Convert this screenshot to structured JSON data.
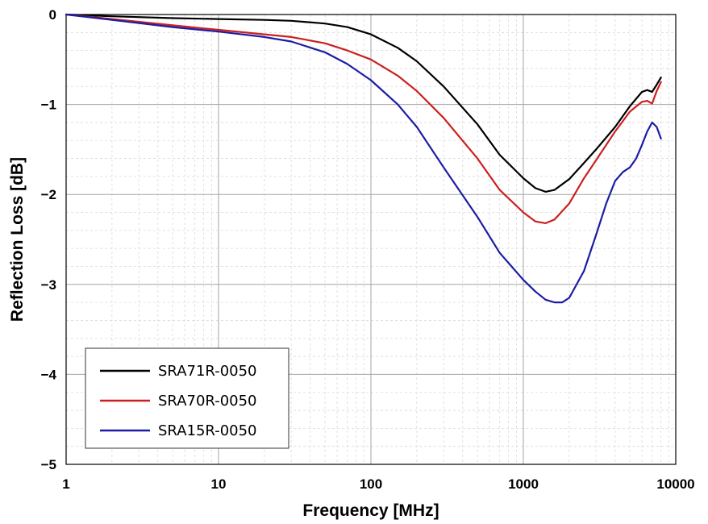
{
  "chart_data": {
    "type": "line",
    "xlabel": "Frequency [MHz]",
    "ylabel": "Reflection Loss [dB]",
    "xscale": "log",
    "xlim": [
      1,
      10000
    ],
    "ylim": [
      -5,
      0
    ],
    "xticks": [
      1,
      10,
      100,
      1000,
      10000
    ],
    "xtick_labels": [
      "1",
      "10",
      "100",
      "1000",
      "10000"
    ],
    "yticks": [
      0,
      -1,
      -2,
      -3,
      -4,
      -5
    ],
    "ytick_labels": [
      "0",
      "−1",
      "−2",
      "−3",
      "−4",
      "−5"
    ],
    "grid": true,
    "legend_position": "bottom-left",
    "series": [
      {
        "name": "SRA71R-0050",
        "color": "#000000",
        "points": [
          [
            1,
            0
          ],
          [
            2,
            -0.02
          ],
          [
            5,
            -0.04
          ],
          [
            10,
            -0.05
          ],
          [
            20,
            -0.06
          ],
          [
            30,
            -0.07
          ],
          [
            50,
            -0.1
          ],
          [
            70,
            -0.14
          ],
          [
            100,
            -0.22
          ],
          [
            150,
            -0.37
          ],
          [
            200,
            -0.52
          ],
          [
            300,
            -0.8
          ],
          [
            500,
            -1.22
          ],
          [
            700,
            -1.56
          ],
          [
            1000,
            -1.82
          ],
          [
            1200,
            -1.93
          ],
          [
            1400,
            -1.97
          ],
          [
            1600,
            -1.95
          ],
          [
            2000,
            -1.83
          ],
          [
            2500,
            -1.65
          ],
          [
            3000,
            -1.5
          ],
          [
            4000,
            -1.25
          ],
          [
            5000,
            -1.02
          ],
          [
            6000,
            -0.86
          ],
          [
            6500,
            -0.84
          ],
          [
            7000,
            -0.86
          ],
          [
            7500,
            -0.78
          ],
          [
            8000,
            -0.7
          ]
        ]
      },
      {
        "name": "SRA70R-0050",
        "color": "#cc1f1f",
        "points": [
          [
            1,
            0
          ],
          [
            2,
            -0.05
          ],
          [
            5,
            -0.12
          ],
          [
            10,
            -0.17
          ],
          [
            20,
            -0.22
          ],
          [
            30,
            -0.25
          ],
          [
            50,
            -0.32
          ],
          [
            70,
            -0.4
          ],
          [
            100,
            -0.5
          ],
          [
            150,
            -0.68
          ],
          [
            200,
            -0.85
          ],
          [
            300,
            -1.15
          ],
          [
            500,
            -1.6
          ],
          [
            700,
            -1.95
          ],
          [
            1000,
            -2.2
          ],
          [
            1200,
            -2.3
          ],
          [
            1400,
            -2.32
          ],
          [
            1600,
            -2.28
          ],
          [
            2000,
            -2.1
          ],
          [
            2500,
            -1.82
          ],
          [
            3000,
            -1.62
          ],
          [
            4000,
            -1.3
          ],
          [
            5000,
            -1.08
          ],
          [
            6000,
            -0.97
          ],
          [
            6500,
            -0.96
          ],
          [
            7000,
            -0.99
          ],
          [
            7500,
            -0.85
          ],
          [
            8000,
            -0.75
          ]
        ]
      },
      {
        "name": "SRA15R-0050",
        "color": "#1c1ca6",
        "points": [
          [
            1,
            0
          ],
          [
            2,
            -0.06
          ],
          [
            5,
            -0.14
          ],
          [
            10,
            -0.19
          ],
          [
            20,
            -0.25
          ],
          [
            30,
            -0.3
          ],
          [
            50,
            -0.42
          ],
          [
            70,
            -0.55
          ],
          [
            100,
            -0.73
          ],
          [
            150,
            -1.0
          ],
          [
            200,
            -1.25
          ],
          [
            300,
            -1.7
          ],
          [
            500,
            -2.25
          ],
          [
            700,
            -2.65
          ],
          [
            1000,
            -2.95
          ],
          [
            1200,
            -3.08
          ],
          [
            1400,
            -3.17
          ],
          [
            1600,
            -3.2
          ],
          [
            1800,
            -3.2
          ],
          [
            2000,
            -3.15
          ],
          [
            2500,
            -2.85
          ],
          [
            3000,
            -2.45
          ],
          [
            3500,
            -2.1
          ],
          [
            4000,
            -1.85
          ],
          [
            4500,
            -1.75
          ],
          [
            5000,
            -1.7
          ],
          [
            5500,
            -1.6
          ],
          [
            6000,
            -1.45
          ],
          [
            6500,
            -1.3
          ],
          [
            7000,
            -1.2
          ],
          [
            7500,
            -1.25
          ],
          [
            8000,
            -1.38
          ]
        ]
      }
    ]
  }
}
